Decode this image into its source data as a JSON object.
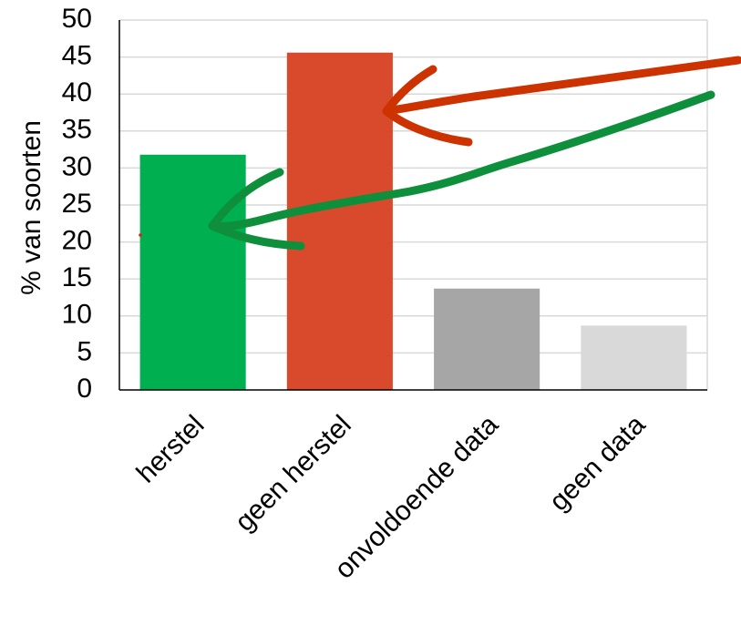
{
  "chart_data": {
    "type": "bar",
    "categories": [
      "herstel",
      "geen herstel",
      "onvoldoende data",
      "geen data"
    ],
    "values": [
      31.8,
      45.6,
      13.7,
      8.7
    ],
    "colors": [
      "#00b050",
      "#d84a2b",
      "#a6a6a6",
      "#d9d9d9"
    ],
    "title": "",
    "xlabel": "",
    "ylabel": "% van soorten",
    "ylim": [
      0,
      50
    ],
    "yticks": [
      0,
      5,
      10,
      15,
      20,
      25,
      30,
      35,
      40,
      45,
      50
    ],
    "grid": true,
    "legend": "none",
    "annotations": [
      {
        "type": "hand-drawn-arrow",
        "color": "#cc3300",
        "points_to": "geen herstel"
      },
      {
        "type": "hand-drawn-arrow",
        "color": "#0e8f3c",
        "points_to": "herstel"
      }
    ]
  }
}
